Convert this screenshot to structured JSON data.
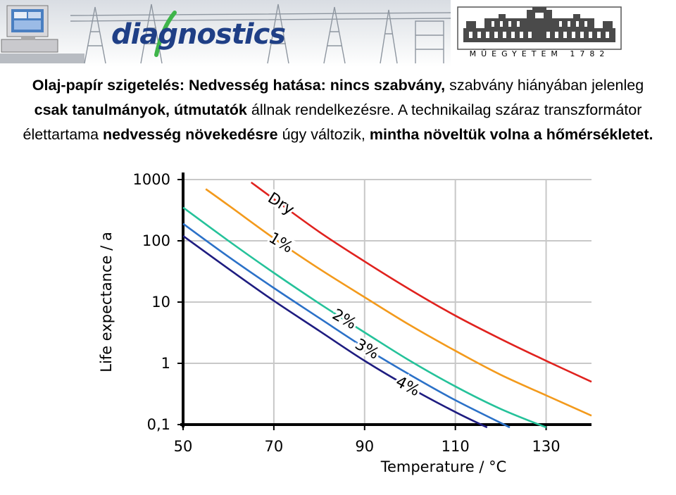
{
  "header": {
    "logo_text": "diagnostics",
    "university_name": "MŰEGYETEM 1782"
  },
  "paragraph": {
    "s1": "Olaj-papír szigetelés: Nedvesség hatása: nincs szabvány,",
    "s2": " szabvány hiányában jelenleg ",
    "s3": "csak tanulmányok, útmutatók",
    "s4": " állnak rendelkezésre. A technikailag száraz transzformátor élettartama ",
    "s5": "nedvesség növekedésre",
    "s6": " úgy változik, ",
    "s7": "mintha növeltük volna a hőmérsékletet."
  },
  "chart_data": {
    "type": "line",
    "xlabel": "Temperature / °C",
    "ylabel": "Life expectance / a",
    "xlim": [
      50,
      140
    ],
    "ylim": [
      0.1,
      1000
    ],
    "yscale": "log",
    "grid": true,
    "x_ticks": [
      50,
      70,
      90,
      110,
      130
    ],
    "x_tick_labels": [
      "50",
      "70",
      "90",
      "110",
      "130"
    ],
    "y_ticks": [
      0.1,
      1,
      10,
      100,
      1000
    ],
    "y_tick_labels": [
      "0,1",
      "1",
      "10",
      "100",
      "1000"
    ],
    "series": [
      {
        "name": "Dry",
        "color": "#e0221e",
        "label_x": 71,
        "x": [
          65,
          70,
          80,
          90,
          100,
          110,
          120,
          130,
          140
        ],
        "y": [
          900,
          480,
          140,
          46,
          16,
          6,
          2.5,
          1.1,
          0.5
        ]
      },
      {
        "name": "1%",
        "color": "#f39a1c",
        "label_x": 71,
        "x": [
          55,
          60,
          70,
          80,
          90,
          100,
          110,
          120,
          130,
          140
        ],
        "y": [
          700,
          380,
          110,
          35,
          12,
          4.2,
          1.6,
          0.65,
          0.3,
          0.14
        ]
      },
      {
        "name": "2%",
        "color": "#25c29a",
        "label_x": 85,
        "x": [
          50,
          60,
          70,
          80,
          90,
          100,
          110,
          120,
          130
        ],
        "y": [
          350,
          100,
          30,
          9.5,
          3.2,
          1.1,
          0.42,
          0.18,
          0.09
        ]
      },
      {
        "name": "3%",
        "color": "#2b71c8",
        "label_x": 90,
        "x": [
          50,
          60,
          70,
          80,
          90,
          100,
          110,
          122
        ],
        "y": [
          190,
          55,
          17,
          5.5,
          1.8,
          0.65,
          0.25,
          0.09
        ]
      },
      {
        "name": "4%",
        "color": "#1e1c80",
        "label_x": 99,
        "x": [
          50,
          60,
          70,
          80,
          90,
          100,
          110,
          117
        ],
        "y": [
          120,
          35,
          10.5,
          3.4,
          1.1,
          0.4,
          0.16,
          0.09
        ]
      }
    ]
  }
}
